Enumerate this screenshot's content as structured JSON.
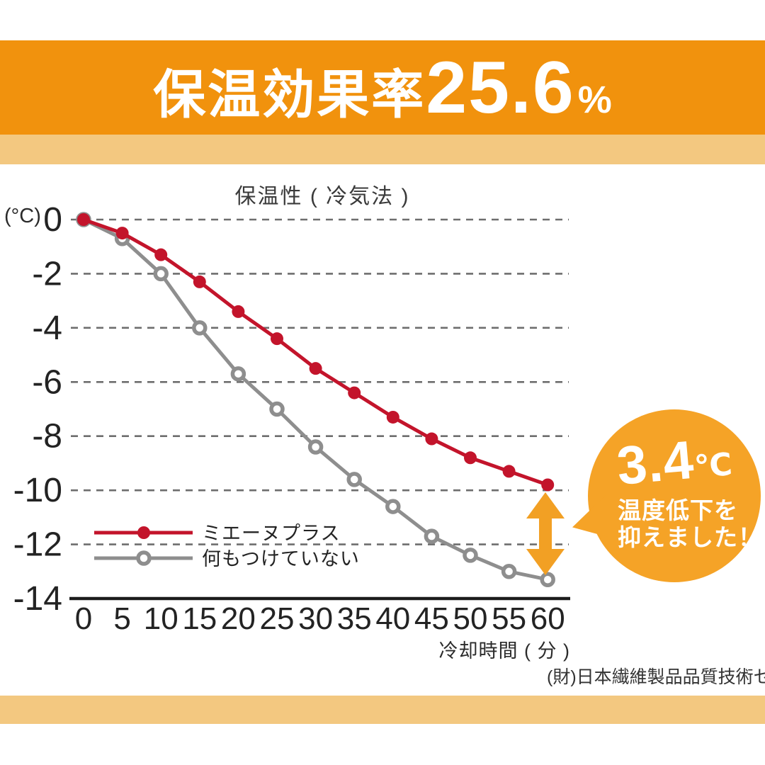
{
  "header": {
    "title_prefix": "保温効果率",
    "title_value": "25.6",
    "title_unit": "%"
  },
  "chart": {
    "title": "保温性 ( 冷気法 )",
    "y_unit_label": "(°C)",
    "x_axis_label": "冷却時間 ( 分 )",
    "source_note": "(財)日本繊維製品品質技術センター調べ"
  },
  "chart_data": {
    "type": "line",
    "title": "保温性 ( 冷気法 )",
    "xlabel": "冷却時間 ( 分 )",
    "ylabel": "(°C)",
    "x": [
      0,
      5,
      10,
      15,
      20,
      25,
      30,
      35,
      40,
      45,
      50,
      55,
      60
    ],
    "ylim": [
      -14,
      0
    ],
    "yticks": [
      0,
      -2,
      -4,
      -6,
      -8,
      -10,
      -12,
      -14
    ],
    "grid": true,
    "legend_position": "lower-left",
    "series": [
      {
        "name": "ミエーヌプラス",
        "color": "#C3142B",
        "marker": "filled-circle",
        "values": [
          0,
          -0.5,
          -1.3,
          -2.3,
          -3.4,
          -4.4,
          -5.5,
          -6.4,
          -7.3,
          -8.1,
          -8.8,
          -9.3,
          -9.8
        ]
      },
      {
        "name": "何もつけていない",
        "color": "#8E8E8E",
        "marker": "open-circle",
        "values": [
          0,
          -0.7,
          -2.0,
          -4.0,
          -5.7,
          -7.0,
          -8.4,
          -9.6,
          -10.6,
          -11.7,
          -12.4,
          -13.0,
          -13.3
        ]
      }
    ]
  },
  "badge": {
    "value": "3.4",
    "unit": "℃",
    "line1": "温度低下を",
    "line2": "抑えました！"
  },
  "colors": {
    "header_orange": "#F1920D",
    "band_tan": "#F3C880",
    "badge_orange": "#F5A327",
    "arrow_orange": "#F2A024",
    "series_red": "#C3142B",
    "series_gray": "#8E8E8E",
    "gridline_gray": "#6E6E6E",
    "axis_black": "#1C1C1C"
  }
}
